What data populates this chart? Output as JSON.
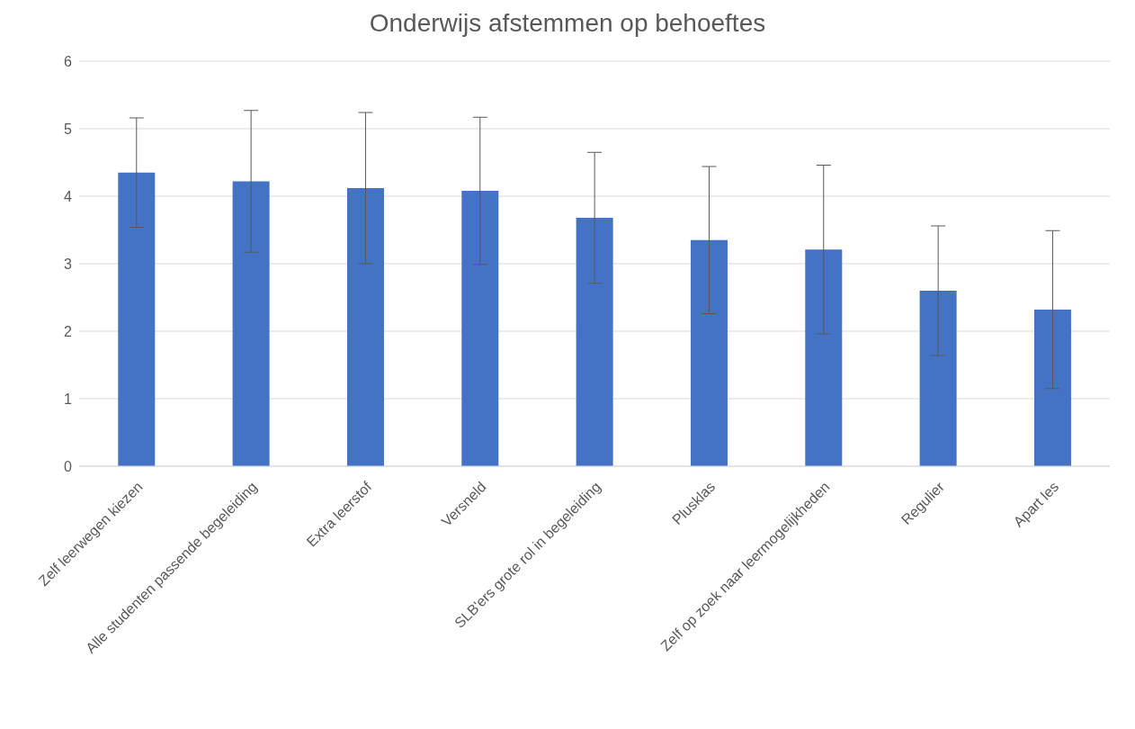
{
  "chart_data": {
    "type": "bar",
    "title": "Onderwijs afstemmen op behoeftes",
    "categories": [
      "Zelf leerwegen kiezen",
      "Alle studenten passende begeleiding",
      "Extra leerstof",
      "Versneld",
      "SLB'ers grote rol in begeleiding",
      "Plusklas",
      "Zelf op zoek naar leermogelijkheden",
      "Regulier",
      "Apart les"
    ],
    "values": [
      4.35,
      4.22,
      4.12,
      4.08,
      3.68,
      3.35,
      3.21,
      2.6,
      2.32
    ],
    "errors": [
      0.81,
      1.05,
      1.12,
      1.09,
      0.97,
      1.09,
      1.25,
      0.96,
      1.17
    ],
    "color": "#4472c4",
    "ylim": [
      0,
      6
    ],
    "yticks": [
      0,
      1,
      2,
      3,
      4,
      5,
      6
    ],
    "grid": "y"
  }
}
